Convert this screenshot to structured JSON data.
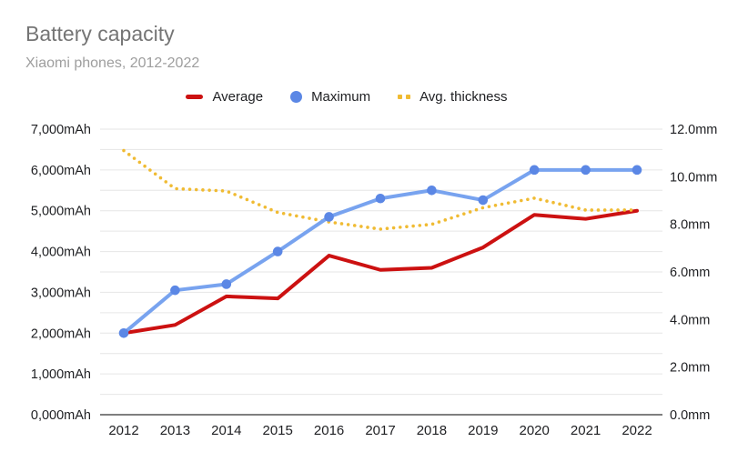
{
  "header": {
    "title": "Battery capacity",
    "subtitle": "Xiaomi phones, 2012-2022"
  },
  "legend": [
    {
      "label": "Average",
      "swatch": "line-dash",
      "color": "#cc1111"
    },
    {
      "label": "Maximum",
      "swatch": "circle",
      "color": "#5b87e5"
    },
    {
      "label": "Avg. thickness",
      "swatch": "dotted",
      "color": "#f0bb33"
    }
  ],
  "colors": {
    "average": "#cc1111",
    "maximum_line": "#78a3ef",
    "maximum_marker": "#5b87e5",
    "thickness": "#f0bb33",
    "gridline": "#e6e6e6",
    "axis_line": "#333333",
    "tick_label": "#202124",
    "title": "#757575",
    "subtitle": "#9e9e9e"
  },
  "chart_data": {
    "type": "line",
    "title": "Battery capacity",
    "subtitle": "Xiaomi phones, 2012-2022",
    "grid": true,
    "legend_position": "top",
    "categories": [
      "2012",
      "2013",
      "2014",
      "2015",
      "2016",
      "2017",
      "2018",
      "2019",
      "2020",
      "2021",
      "2022"
    ],
    "series": [
      {
        "name": "Average",
        "axis": "left",
        "unit": "mAh",
        "style": "solid",
        "color": "#cc1111",
        "values": [
          2000,
          2200,
          2900,
          2850,
          3900,
          3550,
          3600,
          4100,
          4900,
          4800,
          5000
        ]
      },
      {
        "name": "Maximum",
        "axis": "left",
        "unit": "mAh",
        "style": "solid-markers",
        "color": "#78a3ef",
        "marker_color": "#5b87e5",
        "values": [
          2000,
          3050,
          3200,
          4000,
          4850,
          5300,
          5500,
          5260,
          6000,
          6000,
          6000
        ]
      },
      {
        "name": "Avg. thickness",
        "axis": "right",
        "unit": "mm",
        "style": "dotted",
        "color": "#f0bb33",
        "values": [
          11.1,
          9.5,
          9.4,
          8.5,
          8.1,
          7.8,
          8.0,
          8.7,
          9.1,
          8.6,
          8.6
        ]
      }
    ],
    "left_axis": {
      "ylim": [
        0,
        7000
      ],
      "tick_step": 1000,
      "minor_gridline_step": 500,
      "labels": [
        "0,000mAh",
        "1,000mAh",
        "2,000mAh",
        "3,000mAh",
        "4,000mAh",
        "5,000mAh",
        "6,000mAh",
        "7,000mAh"
      ]
    },
    "right_axis": {
      "ylim": [
        0,
        12
      ],
      "tick_step": 2,
      "labels": [
        "0.0mm",
        "2.0mm",
        "4.0mm",
        "6.0mm",
        "8.0mm",
        "10.0mm",
        "12.0mm"
      ]
    }
  }
}
